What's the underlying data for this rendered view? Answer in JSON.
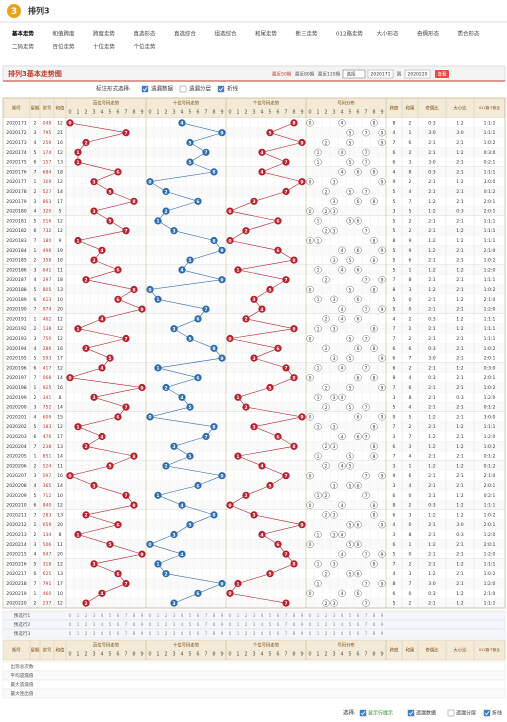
{
  "header": {
    "logo": "3",
    "title": "排列3"
  },
  "nav": [
    [
      "基本走势",
      "和值跨度",
      "跨度走势",
      "直选形态",
      "直选综合",
      "组选综合",
      "和尾走势",
      "断三走势",
      "012路走势",
      "大小形态",
      "奇偶形态",
      "质合形态"
    ],
    [
      "二码走势",
      "百位走势",
      "十位走势",
      "个位走势"
    ]
  ],
  "panel": {
    "title": "排列3基本走势图",
    "ranges": [
      "最近50期",
      "最近80期",
      "最近120期"
    ],
    "select": "选择",
    "from": "2020171",
    "to_label": "到",
    "to": "2020220",
    "button": "查看"
  },
  "options": {
    "label": "标注形式选择:",
    "items": [
      {
        "label": "遗漏数据",
        "checked": true
      },
      {
        "label": "遗漏分层",
        "checked": false
      },
      {
        "label": "折线",
        "checked": true
      }
    ]
  },
  "chart_data": {
    "type": "trend-table",
    "columns": {
      "issue": "期号",
      "week": "星期",
      "number": "奖号",
      "sum": "和值",
      "hundreds": "百位号码走势",
      "tens": "十位号码走势",
      "units": "个位号码走势",
      "dist": "号码分布",
      "span": "跨度",
      "tail": "和尾",
      "oe": "奇偶比",
      "bs": "大小比",
      "r012": "012路个数比"
    },
    "digit_labels": [
      0,
      1,
      2,
      3,
      4,
      5,
      6,
      7,
      8,
      9
    ],
    "series_colors": [
      "#b5202a",
      "#2b6cb0",
      "#b5202a"
    ],
    "rows": [
      [
        "2020171",
        2,
        "048",
        12,
        8,
        2,
        "0:3",
        "1:2",
        "1:1:1"
      ],
      [
        "2020172",
        3,
        "795",
        21,
        4,
        1,
        "3:0",
        "3:0",
        "1:1:1"
      ],
      [
        "2020173",
        4,
        "259",
        16,
        7,
        6,
        "2:1",
        "2:1",
        "1:0:2"
      ],
      [
        "2020174",
        5,
        "174",
        12,
        6,
        2,
        "2:1",
        "1:2",
        "0:3:0"
      ],
      [
        "2020175",
        6,
        "157",
        13,
        6,
        3,
        "3:0",
        "2:1",
        "0:2:1"
      ],
      [
        "2020176",
        7,
        "684",
        18,
        4,
        8,
        "0:3",
        "2:1",
        "1:1:1"
      ],
      [
        "2020177",
        1,
        "309",
        12,
        9,
        2,
        "2:1",
        "1:2",
        "3:0:0"
      ],
      [
        "2020178",
        2,
        "527",
        14,
        5,
        4,
        "2:1",
        "2:1",
        "0:1:2"
      ],
      [
        "2020179",
        3,
        "863",
        17,
        5,
        7,
        "1:2",
        "2:1",
        "2:0:1"
      ],
      [
        "2020180",
        4,
        "320",
        5,
        3,
        5,
        "1:2",
        "0:3",
        "2:0:1"
      ],
      [
        "2020181",
        5,
        "516",
        12,
        5,
        2,
        "2:1",
        "2:1",
        "1:1:1"
      ],
      [
        "2020182",
        6,
        "732",
        12,
        5,
        2,
        "2:1",
        "1:2",
        "1:1:1"
      ],
      [
        "2020183",
        7,
        "180",
        9,
        8,
        9,
        "1:2",
        "1:2",
        "1:1:1"
      ],
      [
        "2020184",
        1,
        "496",
        19,
        5,
        9,
        "1:2",
        "2:1",
        "2:1:0"
      ],
      [
        "2020185",
        2,
        "358",
        16,
        5,
        6,
        "2:1",
        "2:1",
        "1:0:2"
      ],
      [
        "2020186",
        3,
        "641",
        11,
        5,
        1,
        "1:2",
        "1:2",
        "1:2:0"
      ],
      [
        "2020187",
        4,
        "297",
        18,
        7,
        8,
        "2:1",
        "2:1",
        "1:1:1"
      ],
      [
        "2020188",
        5,
        "805",
        13,
        8,
        3,
        "1:2",
        "2:1",
        "1:0:2"
      ],
      [
        "2020189",
        6,
        "613",
        10,
        5,
        0,
        "2:1",
        "1:2",
        "2:1:0"
      ],
      [
        "2020190",
        7,
        "974",
        20,
        5,
        0,
        "2:1",
        "2:1",
        "1:2:0"
      ],
      [
        "2020191",
        1,
        "462",
        12,
        4,
        2,
        "0:3",
        "1:2",
        "1:1:1"
      ],
      [
        "2020192",
        2,
        "138",
        12,
        7,
        2,
        "2:1",
        "1:2",
        "1:1:1"
      ],
      [
        "2020193",
        3,
        "750",
        12,
        7,
        2,
        "2:1",
        "2:1",
        "1:1:1"
      ],
      [
        "2020194",
        4,
        "286",
        16,
        6,
        6,
        "0:3",
        "2:1",
        "1:0:2"
      ],
      [
        "2020195",
        5,
        "593",
        17,
        6,
        7,
        "3:0",
        "2:1",
        "2:0:1"
      ],
      [
        "2020196",
        6,
        "417",
        12,
        6,
        2,
        "2:1",
        "1:2",
        "0:3:0"
      ],
      [
        "2020197",
        7,
        "068",
        14,
        8,
        4,
        "0:3",
        "2:1",
        "2:0:1"
      ],
      [
        "2020198",
        1,
        "925",
        16,
        7,
        6,
        "2:1",
        "2:1",
        "1:0:2"
      ],
      [
        "2020199",
        2,
        "341",
        8,
        3,
        8,
        "2:1",
        "0:3",
        "1:2:0"
      ],
      [
        "2020200",
        3,
        "752",
        14,
        5,
        4,
        "2:1",
        "2:1",
        "0:1:2"
      ],
      [
        "2020201",
        4,
        "609",
        15,
        9,
        5,
        "1:2",
        "2:1",
        "3:0:0"
      ],
      [
        "2020202",
        5,
        "183",
        12,
        7,
        2,
        "2:1",
        "1:2",
        "1:1:1"
      ],
      [
        "2020203",
        6,
        "476",
        17,
        3,
        7,
        "1:2",
        "2:1",
        "1:2:0"
      ],
      [
        "2020204",
        7,
        "238",
        13,
        6,
        3,
        "1:2",
        "1:2",
        "1:0:2"
      ],
      [
        "2020205",
        1,
        "851",
        14,
        7,
        4,
        "2:1",
        "2:1",
        "0:1:2"
      ],
      [
        "2020206",
        2,
        "524",
        11,
        3,
        1,
        "1:2",
        "1:2",
        "0:1:2"
      ],
      [
        "2020207",
        3,
        "097",
        16,
        9,
        6,
        "2:1",
        "2:1",
        "2:1:0"
      ],
      [
        "2020208",
        4,
        "365",
        14,
        3,
        4,
        "2:1",
        "2:1",
        "2:0:1"
      ],
      [
        "2020209",
        5,
        "712",
        10,
        6,
        0,
        "2:1",
        "1:2",
        "0:2:1"
      ],
      [
        "2020210",
        6,
        "840",
        12,
        8,
        2,
        "0:3",
        "1:2",
        "1:1:1"
      ],
      [
        "2020211",
        7,
        "283",
        13,
        6,
        3,
        "1:2",
        "1:2",
        "1:0:2"
      ],
      [
        "2020212",
        1,
        "659",
        20,
        4,
        0,
        "2:1",
        "3:0",
        "2:0:1"
      ],
      [
        "2020213",
        2,
        "134",
        8,
        3,
        8,
        "2:1",
        "0:3",
        "1:2:0"
      ],
      [
        "2020214",
        3,
        "506",
        11,
        6,
        1,
        "1:2",
        "2:1",
        "2:0:1"
      ],
      [
        "2020215",
        4,
        "947",
        20,
        5,
        0,
        "2:1",
        "2:1",
        "1:2:0"
      ],
      [
        "2020216",
        5,
        "318",
        12,
        7,
        2,
        "2:1",
        "1:2",
        "1:1:1"
      ],
      [
        "2020217",
        6,
        "625",
        13,
        4,
        3,
        "1:2",
        "2:1",
        "1:0:2"
      ],
      [
        "2020218",
        7,
        "791",
        17,
        8,
        7,
        "3:0",
        "2:1",
        "1:2:0"
      ],
      [
        "2020219",
        1,
        "460",
        10,
        6,
        0,
        "0:3",
        "1:2",
        "2:1:0"
      ],
      [
        "2020220",
        2,
        "237",
        12,
        5,
        2,
        "2:1",
        "1:2",
        "1:1:1"
      ]
    ],
    "digits": [
      [
        0,
        4,
        8
      ],
      [
        7,
        9,
        5
      ],
      [
        2,
        5,
        9
      ],
      [
        1,
        7,
        4
      ],
      [
        1,
        5,
        7
      ],
      [
        6,
        8,
        4
      ],
      [
        3,
        0,
        9
      ],
      [
        5,
        2,
        7
      ],
      [
        8,
        6,
        3
      ],
      [
        3,
        2,
        0
      ],
      [
        5,
        1,
        6
      ],
      [
        7,
        3,
        2
      ],
      [
        1,
        8,
        0
      ],
      [
        4,
        9,
        6
      ],
      [
        3,
        5,
        8
      ],
      [
        6,
        4,
        1
      ],
      [
        2,
        9,
        7
      ],
      [
        8,
        0,
        5
      ],
      [
        6,
        1,
        3
      ],
      [
        9,
        7,
        4
      ],
      [
        4,
        6,
        2
      ],
      [
        1,
        3,
        8
      ],
      [
        7,
        5,
        0
      ],
      [
        2,
        8,
        6
      ],
      [
        5,
        9,
        3
      ],
      [
        4,
        1,
        7
      ],
      [
        0,
        6,
        8
      ],
      [
        9,
        2,
        5
      ],
      [
        3,
        4,
        1
      ],
      [
        7,
        5,
        2
      ],
      [
        6,
        0,
        9
      ],
      [
        1,
        8,
        3
      ],
      [
        4,
        7,
        6
      ],
      [
        2,
        3,
        8
      ],
      [
        8,
        5,
        1
      ],
      [
        5,
        2,
        4
      ],
      [
        0,
        9,
        7
      ],
      [
        3,
        6,
        5
      ],
      [
        7,
        1,
        2
      ],
      [
        8,
        4,
        0
      ],
      [
        2,
        8,
        3
      ],
      [
        6,
        5,
        9
      ],
      [
        1,
        3,
        4
      ],
      [
        5,
        0,
        6
      ],
      [
        9,
        4,
        7
      ],
      [
        3,
        1,
        8
      ],
      [
        6,
        2,
        5
      ],
      [
        7,
        9,
        1
      ],
      [
        4,
        6,
        0
      ],
      [
        2,
        3,
        7
      ]
    ],
    "preselect": [
      "预选行1",
      "预选行2",
      "预选行3"
    ],
    "stats": [
      "出现总次数",
      "平均遗漏值",
      "最大遗漏值",
      "最大连出值"
    ]
  },
  "footer": {
    "label": "选择:",
    "items": [
      {
        "label": "显示行提示",
        "checked": true
      },
      {
        "label": "遗漏数据",
        "checked": true
      },
      {
        "label": "遗漏分层",
        "checked": false
      },
      {
        "label": "折线",
        "checked": true
      }
    ]
  }
}
